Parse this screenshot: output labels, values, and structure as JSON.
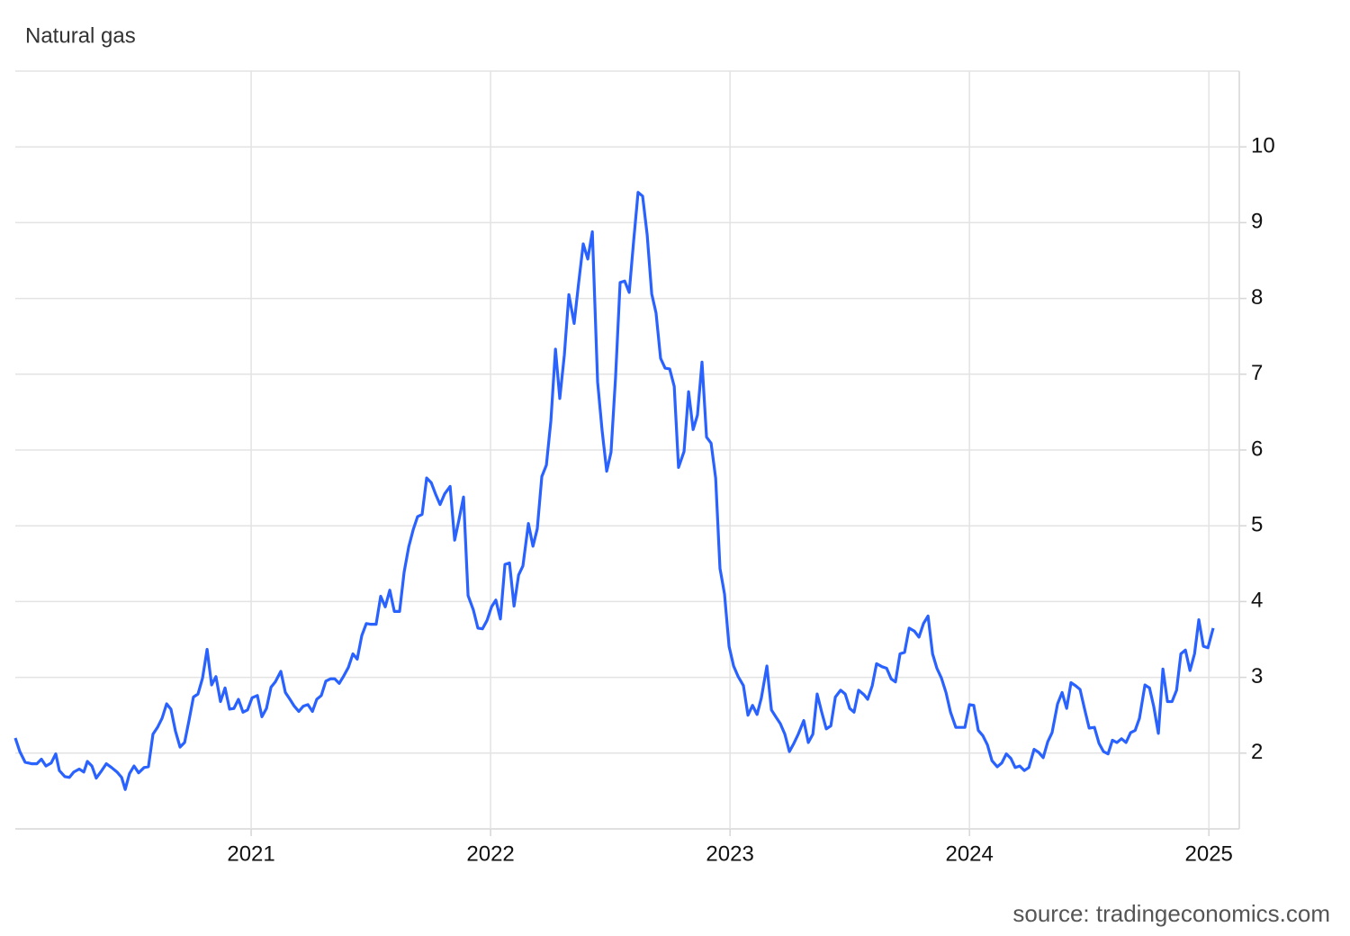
{
  "chart_data": {
    "type": "line",
    "title": "Natural gas",
    "source": "source: tradingeconomics.com",
    "xlim": [
      2020.015,
      2025.127
    ],
    "xticks": [
      2021,
      2022,
      2023,
      2024,
      2025
    ],
    "ylim": [
      1,
      11
    ],
    "yticks": [
      2,
      3,
      4,
      5,
      6,
      7,
      8,
      9,
      10
    ],
    "grid": true,
    "series": [
      {
        "color": "#2962ff",
        "x": [
          2020.015,
          2020.034,
          2020.056,
          2020.083,
          2020.105,
          2020.124,
          2020.143,
          2020.165,
          2020.184,
          2020.199,
          2020.222,
          2020.241,
          2020.259,
          2020.282,
          2020.301,
          2020.316,
          2020.335,
          2020.353,
          2020.376,
          2020.395,
          2020.417,
          2020.44,
          2020.459,
          2020.474,
          2020.492,
          2020.511,
          2020.53,
          2020.553,
          2020.571,
          2020.59,
          2020.609,
          2020.628,
          2020.647,
          2020.665,
          2020.684,
          2020.703,
          2020.722,
          2020.741,
          2020.759,
          2020.778,
          2020.797,
          2020.816,
          2020.835,
          2020.853,
          2020.872,
          2020.891,
          2020.91,
          2020.928,
          2020.947,
          2020.966,
          2020.985,
          2021.004,
          2021.026,
          2021.045,
          2021.064,
          2021.083,
          2021.101,
          2021.124,
          2021.143,
          2021.162,
          2021.18,
          2021.199,
          2021.218,
          2021.237,
          2021.256,
          2021.274,
          2021.293,
          2021.312,
          2021.331,
          2021.349,
          2021.368,
          2021.387,
          2021.406,
          2021.425,
          2021.443,
          2021.462,
          2021.481,
          2021.5,
          2021.522,
          2021.541,
          2021.56,
          2021.579,
          2021.598,
          2021.62,
          2021.639,
          2021.658,
          2021.677,
          2021.695,
          2021.714,
          2021.733,
          2021.752,
          2021.77,
          2021.789,
          2021.808,
          2021.831,
          2021.85,
          2021.868,
          2021.887,
          2021.906,
          2021.928,
          2021.947,
          2021.966,
          2021.985,
          2022.004,
          2022.022,
          2022.041,
          2022.06,
          2022.079,
          2022.098,
          2022.117,
          2022.135,
          2022.158,
          2022.177,
          2022.195,
          2022.214,
          2022.233,
          2022.252,
          2022.271,
          2022.289,
          2022.308,
          2022.327,
          2022.349,
          2022.368,
          2022.387,
          2022.406,
          2022.425,
          2022.447,
          2022.466,
          2022.485,
          2022.503,
          2022.522,
          2022.541,
          2022.56,
          2022.579,
          2022.597,
          2022.616,
          2022.635,
          2022.654,
          2022.673,
          2022.691,
          2022.71,
          2022.729,
          2022.748,
          2022.767,
          2022.785,
          2022.808,
          2022.827,
          2022.846,
          2022.864,
          2022.883,
          2022.902,
          2022.921,
          2022.94,
          2022.958,
          2022.977,
          2022.996,
          2023.015,
          2023.034,
          2023.056,
          2023.075,
          2023.094,
          2023.113,
          2023.131,
          2023.154,
          2023.173,
          2023.191,
          2023.21,
          2023.229,
          2023.248,
          2023.267,
          2023.285,
          2023.308,
          2023.327,
          2023.346,
          2023.364,
          2023.383,
          2023.402,
          2023.421,
          2023.44,
          2023.462,
          2023.481,
          2023.5,
          2023.518,
          2023.537,
          2023.56,
          2023.575,
          2023.594,
          2023.612,
          2023.635,
          2023.654,
          2023.673,
          2023.691,
          2023.71,
          2023.729,
          2023.748,
          2023.77,
          2023.789,
          2023.808,
          2023.827,
          2023.846,
          2023.864,
          2023.883,
          2023.902,
          2023.921,
          2023.943,
          2023.962,
          2023.981,
          2024.0,
          2024.018,
          2024.037,
          2024.056,
          2024.075,
          2024.094,
          2024.116,
          2024.135,
          2024.154,
          2024.173,
          2024.191,
          2024.21,
          2024.229,
          2024.248,
          2024.27,
          2024.289,
          2024.308,
          2024.327,
          2024.345,
          2024.368,
          2024.387,
          2024.406,
          2024.424,
          2024.443,
          2024.462,
          2024.481,
          2024.5,
          2024.522,
          2024.541,
          2024.56,
          2024.579,
          2024.597,
          2024.616,
          2024.635,
          2024.654,
          2024.673,
          2024.692,
          2024.71,
          2024.733,
          2024.752,
          2024.77,
          2024.789,
          2024.808,
          2024.827,
          2024.846,
          2024.865,
          2024.883,
          2024.902,
          2024.921,
          2024.94,
          2024.958,
          2024.977,
          2024.996,
          2025.018
        ],
        "values": [
          2.2,
          2.02,
          1.88,
          1.86,
          1.86,
          1.92,
          1.83,
          1.87,
          1.99,
          1.77,
          1.69,
          1.68,
          1.75,
          1.79,
          1.75,
          1.89,
          1.83,
          1.67,
          1.77,
          1.86,
          1.81,
          1.75,
          1.68,
          1.52,
          1.73,
          1.83,
          1.74,
          1.81,
          1.82,
          2.25,
          2.34,
          2.46,
          2.65,
          2.58,
          2.29,
          2.08,
          2.14,
          2.44,
          2.74,
          2.78,
          2.99,
          3.37,
          2.9,
          3.01,
          2.68,
          2.86,
          2.58,
          2.59,
          2.71,
          2.54,
          2.57,
          2.73,
          2.76,
          2.48,
          2.59,
          2.87,
          2.94,
          3.08,
          2.8,
          2.71,
          2.62,
          2.55,
          2.62,
          2.64,
          2.55,
          2.71,
          2.76,
          2.95,
          2.98,
          2.98,
          2.92,
          3.02,
          3.13,
          3.31,
          3.24,
          3.55,
          3.71,
          3.7,
          3.7,
          4.07,
          3.93,
          4.15,
          3.87,
          3.87,
          4.39,
          4.72,
          4.95,
          5.12,
          5.15,
          5.63,
          5.57,
          5.42,
          5.28,
          5.42,
          5.52,
          4.81,
          5.08,
          5.38,
          4.08,
          3.89,
          3.65,
          3.64,
          3.75,
          3.93,
          4.02,
          3.77,
          4.49,
          4.51,
          3.94,
          4.35,
          4.47,
          5.03,
          4.73,
          4.96,
          5.65,
          5.8,
          6.39,
          7.33,
          6.68,
          7.25,
          8.05,
          7.67,
          8.21,
          8.72,
          8.52,
          8.88,
          6.9,
          6.25,
          5.72,
          5.97,
          6.96,
          8.21,
          8.23,
          8.08,
          8.74,
          9.4,
          9.35,
          8.84,
          8.06,
          7.81,
          7.21,
          7.08,
          7.07,
          6.84,
          5.77,
          5.98,
          6.77,
          6.27,
          6.46,
          7.16,
          6.17,
          6.09,
          5.63,
          4.44,
          4.1,
          3.41,
          3.15,
          3.01,
          2.89,
          2.5,
          2.63,
          2.51,
          2.73,
          3.15,
          2.57,
          2.48,
          2.39,
          2.25,
          2.02,
          2.13,
          2.25,
          2.43,
          2.14,
          2.25,
          2.78,
          2.54,
          2.32,
          2.36,
          2.74,
          2.83,
          2.78,
          2.59,
          2.54,
          2.83,
          2.77,
          2.71,
          2.89,
          3.18,
          3.14,
          3.12,
          2.98,
          2.94,
          3.31,
          3.33,
          3.65,
          3.61,
          3.53,
          3.71,
          3.81,
          3.31,
          3.12,
          2.99,
          2.8,
          2.54,
          2.34,
          2.34,
          2.34,
          2.64,
          2.63,
          2.3,
          2.23,
          2.11,
          1.9,
          1.82,
          1.87,
          1.99,
          1.93,
          1.81,
          1.83,
          1.77,
          1.81,
          2.05,
          2.01,
          1.94,
          2.15,
          2.27,
          2.65,
          2.8,
          2.59,
          2.93,
          2.89,
          2.84,
          2.58,
          2.33,
          2.34,
          2.13,
          2.02,
          1.99,
          2.17,
          2.14,
          2.19,
          2.14,
          2.27,
          2.3,
          2.46,
          2.9,
          2.86,
          2.61,
          2.26,
          3.11,
          2.68,
          2.68,
          2.83,
          3.31,
          3.36,
          3.09,
          3.31,
          3.76,
          3.41,
          3.39,
          3.65
        ]
      }
    ]
  }
}
